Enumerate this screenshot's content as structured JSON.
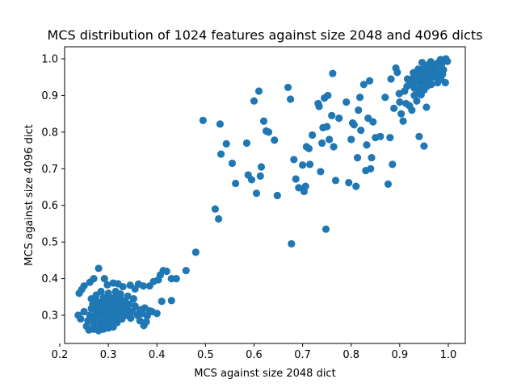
{
  "chart_data": {
    "type": "scatter",
    "title": "MCS distribution of 1024 features against size 2048 and 4096 dicts",
    "xlabel": "MCS against size 2048 dict",
    "ylabel": "MCS against size 4096 dict",
    "xlim": [
      0.21,
      1.035
    ],
    "ylim": [
      0.223,
      1.033
    ],
    "xticks": [
      "0.2",
      "0.3",
      "0.4",
      "0.5",
      "0.6",
      "0.7",
      "0.8",
      "0.9",
      "1.0"
    ],
    "yticks": [
      "0.3",
      "0.4",
      "0.5",
      "0.6",
      "0.7",
      "0.8",
      "0.9",
      "1.0"
    ],
    "grid": false,
    "marker_color": "#1f77b4",
    "series": [
      {
        "points": [
          [
            0.24,
            0.36
          ],
          [
            0.245,
            0.37
          ],
          [
            0.25,
            0.38
          ],
          [
            0.262,
            0.39
          ],
          [
            0.27,
            0.4
          ],
          [
            0.28,
            0.428
          ],
          [
            0.292,
            0.4
          ],
          [
            0.298,
            0.383
          ],
          [
            0.31,
            0.388
          ],
          [
            0.32,
            0.386
          ],
          [
            0.33,
            0.378
          ],
          [
            0.345,
            0.382
          ],
          [
            0.355,
            0.372
          ],
          [
            0.362,
            0.385
          ],
          [
            0.372,
            0.38
          ],
          [
            0.385,
            0.38
          ],
          [
            0.393,
            0.392
          ],
          [
            0.403,
            0.397
          ],
          [
            0.407,
            0.41
          ],
          [
            0.413,
            0.422
          ],
          [
            0.42,
            0.42
          ],
          [
            0.43,
            0.4
          ],
          [
            0.44,
            0.4
          ],
          [
            0.46,
            0.422
          ],
          [
            0.48,
            0.472
          ],
          [
            0.41,
            0.338
          ],
          [
            0.43,
            0.34
          ],
          [
            0.385,
            0.312
          ],
          [
            0.373,
            0.272
          ],
          [
            0.378,
            0.282
          ],
          [
            0.365,
            0.285
          ],
          [
            0.238,
            0.3
          ],
          [
            0.243,
            0.29
          ],
          [
            0.25,
            0.31
          ],
          [
            0.255,
            0.27
          ],
          [
            0.258,
            0.285
          ],
          [
            0.262,
            0.3
          ],
          [
            0.265,
            0.318
          ],
          [
            0.268,
            0.33
          ],
          [
            0.27,
            0.275
          ],
          [
            0.272,
            0.29
          ],
          [
            0.275,
            0.305
          ],
          [
            0.277,
            0.32
          ],
          [
            0.28,
            0.335
          ],
          [
            0.282,
            0.265
          ],
          [
            0.284,
            0.28
          ],
          [
            0.286,
            0.296
          ],
          [
            0.288,
            0.312
          ],
          [
            0.29,
            0.328
          ],
          [
            0.292,
            0.344
          ],
          [
            0.294,
            0.27
          ],
          [
            0.296,
            0.286
          ],
          [
            0.298,
            0.3
          ],
          [
            0.3,
            0.316
          ],
          [
            0.302,
            0.332
          ],
          [
            0.304,
            0.348
          ],
          [
            0.306,
            0.275
          ],
          [
            0.308,
            0.292
          ],
          [
            0.31,
            0.308
          ],
          [
            0.312,
            0.322
          ],
          [
            0.314,
            0.338
          ],
          [
            0.316,
            0.354
          ],
          [
            0.318,
            0.28
          ],
          [
            0.32,
            0.296
          ],
          [
            0.322,
            0.312
          ],
          [
            0.324,
            0.328
          ],
          [
            0.326,
            0.344
          ],
          [
            0.328,
            0.29
          ],
          [
            0.33,
            0.306
          ],
          [
            0.332,
            0.32
          ],
          [
            0.335,
            0.336
          ],
          [
            0.338,
            0.3
          ],
          [
            0.34,
            0.315
          ],
          [
            0.343,
            0.33
          ],
          [
            0.346,
            0.292
          ],
          [
            0.35,
            0.31
          ],
          [
            0.355,
            0.325
          ],
          [
            0.36,
            0.3
          ],
          [
            0.365,
            0.315
          ],
          [
            0.37,
            0.305
          ],
          [
            0.375,
            0.32
          ],
          [
            0.38,
            0.298
          ],
          [
            0.39,
            0.31
          ],
          [
            0.4,
            0.305
          ],
          [
            0.26,
            0.26
          ],
          [
            0.27,
            0.262
          ],
          [
            0.28,
            0.258
          ],
          [
            0.29,
            0.262
          ],
          [
            0.3,
            0.265
          ],
          [
            0.31,
            0.268
          ],
          [
            0.265,
            0.345
          ],
          [
            0.275,
            0.355
          ],
          [
            0.285,
            0.365
          ],
          [
            0.3,
            0.36
          ],
          [
            0.315,
            0.365
          ],
          [
            0.325,
            0.358
          ],
          [
            0.34,
            0.352
          ],
          [
            0.352,
            0.345
          ],
          [
            0.285,
            0.318
          ],
          [
            0.296,
            0.322
          ],
          [
            0.306,
            0.33
          ],
          [
            0.318,
            0.31
          ],
          [
            0.327,
            0.3
          ],
          [
            0.336,
            0.318
          ],
          [
            0.275,
            0.34
          ],
          [
            0.29,
            0.348
          ],
          [
            0.305,
            0.29
          ],
          [
            0.315,
            0.285
          ],
          [
            0.295,
            0.338
          ],
          [
            0.283,
            0.3
          ],
          [
            0.495,
            0.832
          ],
          [
            0.52,
            0.59
          ],
          [
            0.527,
            0.563
          ],
          [
            0.53,
            0.822
          ],
          [
            0.532,
            0.74
          ],
          [
            0.543,
            0.768
          ],
          [
            0.555,
            0.715
          ],
          [
            0.562,
            0.66
          ],
          [
            0.585,
            0.77
          ],
          [
            0.588,
            0.683
          ],
          [
            0.595,
            0.67
          ],
          [
            0.6,
            0.885
          ],
          [
            0.605,
            0.633
          ],
          [
            0.61,
            0.912
          ],
          [
            0.613,
            0.68
          ],
          [
            0.615,
            0.705
          ],
          [
            0.62,
            0.83
          ],
          [
            0.625,
            0.803
          ],
          [
            0.63,
            0.8
          ],
          [
            0.642,
            0.778
          ],
          [
            0.648,
            0.627
          ],
          [
            0.67,
            0.922
          ],
          [
            0.675,
            0.89
          ],
          [
            0.677,
            0.495
          ],
          [
            0.682,
            0.725
          ],
          [
            0.686,
            0.672
          ],
          [
            0.692,
            0.648
          ],
          [
            0.7,
            0.71
          ],
          [
            0.703,
            0.638
          ],
          [
            0.706,
            0.652
          ],
          [
            0.708,
            0.76
          ],
          [
            0.713,
            0.755
          ],
          [
            0.715,
            0.712
          ],
          [
            0.72,
            0.792
          ],
          [
            0.732,
            0.878
          ],
          [
            0.734,
            0.87
          ],
          [
            0.737,
            0.692
          ],
          [
            0.74,
            0.77
          ],
          [
            0.742,
            0.812
          ],
          [
            0.745,
            0.893
          ],
          [
            0.748,
            0.535
          ],
          [
            0.75,
            0.815
          ],
          [
            0.752,
            0.9
          ],
          [
            0.755,
            0.78
          ],
          [
            0.76,
            0.845
          ],
          [
            0.762,
            0.96
          ],
          [
            0.764,
            0.76
          ],
          [
            0.768,
            0.668
          ],
          [
            0.775,
            0.838
          ],
          [
            0.79,
            0.882
          ],
          [
            0.795,
            0.662
          ],
          [
            0.8,
            0.78
          ],
          [
            0.803,
            0.825
          ],
          [
            0.806,
            0.82
          ],
          [
            0.81,
            0.652
          ],
          [
            0.813,
            0.73
          ],
          [
            0.815,
            0.86
          ],
          [
            0.818,
            0.895
          ],
          [
            0.82,
            0.805
          ],
          [
            0.826,
            0.93
          ],
          [
            0.83,
            0.695
          ],
          [
            0.832,
            0.765
          ],
          [
            0.835,
            0.838
          ],
          [
            0.838,
            0.94
          ],
          [
            0.84,
            0.7
          ],
          [
            0.842,
            0.73
          ],
          [
            0.845,
            0.828
          ],
          [
            0.85,
            0.785
          ],
          [
            0.86,
            0.788
          ],
          [
            0.87,
            0.895
          ],
          [
            0.876,
            0.658
          ],
          [
            0.88,
            0.785
          ],
          [
            0.882,
            0.945
          ],
          [
            0.885,
            0.712
          ],
          [
            0.888,
            0.865
          ],
          [
            0.892,
            0.975
          ],
          [
            0.895,
            0.963
          ],
          [
            0.899,
            0.905
          ],
          [
            0.9,
            0.882
          ],
          [
            0.903,
            0.85
          ],
          [
            0.907,
            0.83
          ],
          [
            0.91,
            0.912
          ],
          [
            0.913,
            0.878
          ],
          [
            0.916,
            0.945
          ],
          [
            0.92,
            0.872
          ],
          [
            0.925,
            0.86
          ],
          [
            0.93,
            0.9
          ],
          [
            0.935,
            0.885
          ],
          [
            0.94,
            0.788
          ],
          [
            0.95,
            0.762
          ],
          [
            0.955,
            0.868
          ],
          [
            0.92,
            0.93
          ],
          [
            0.925,
            0.945
          ],
          [
            0.93,
            0.92
          ],
          [
            0.935,
            0.955
          ],
          [
            0.94,
            0.935
          ],
          [
            0.945,
            0.97
          ],
          [
            0.95,
            0.915
          ],
          [
            0.955,
            0.95
          ],
          [
            0.96,
            0.985
          ],
          [
            0.965,
            0.93
          ],
          [
            0.97,
            0.96
          ],
          [
            0.975,
            0.975
          ],
          [
            0.98,
            0.99
          ],
          [
            0.985,
            0.945
          ],
          [
            0.99,
            0.995
          ],
          [
            0.995,
            1.0
          ],
          [
            0.998,
            0.993
          ],
          [
            0.994,
            0.935
          ],
          [
            0.99,
            0.97
          ],
          [
            0.982,
            0.96
          ],
          [
            0.976,
            0.948
          ],
          [
            0.968,
            0.972
          ],
          [
            0.962,
            0.942
          ],
          [
            0.956,
            0.925
          ],
          [
            0.948,
            0.958
          ],
          [
            0.942,
            0.918
          ],
          [
            0.938,
            0.972
          ],
          [
            0.932,
            0.94
          ],
          [
            0.928,
            0.962
          ],
          [
            0.946,
            0.99
          ],
          [
            0.952,
            0.98
          ],
          [
            0.958,
            0.968
          ],
          [
            0.964,
            0.992
          ],
          [
            0.972,
            0.985
          ],
          [
            0.978,
            0.935
          ],
          [
            0.986,
            0.982
          ],
          [
            0.944,
            0.902
          ],
          [
            0.936,
            0.91
          ],
          [
            0.95,
            0.94
          ],
          [
            0.958,
            0.955
          ],
          [
            0.966,
            0.95
          ],
          [
            0.974,
            0.965
          ],
          [
            0.961,
            0.978
          ],
          [
            0.953,
            0.93
          ],
          [
            0.94,
            0.95
          ],
          [
            0.926,
            0.935
          ],
          [
            0.988,
            0.958
          ],
          [
            0.984,
            0.998
          ],
          [
            0.915,
            0.925
          ]
        ]
      }
    ]
  }
}
